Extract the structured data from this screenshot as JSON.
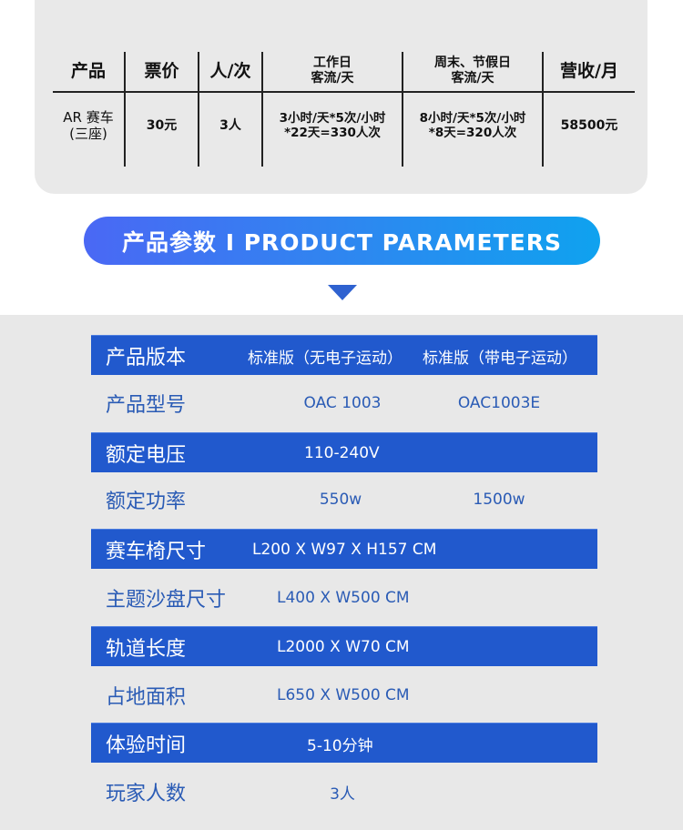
{
  "revenue_table": {
    "headers": [
      "产品",
      "票价",
      "人/次",
      "工作日\n客流/天",
      "周末、节假日\n客流/天",
      "营收/月"
    ],
    "row": [
      "AR 赛车\n(三座)",
      "30元",
      "3人",
      "3小时/天*5次/小时\n*22天=330人次",
      "8小时/天*5次/小时\n*8天=320人次",
      "58500元"
    ]
  },
  "banner": {
    "title": "产品参数 I PRODUCT PARAMETERS"
  },
  "params": [
    {
      "label": "产品版本",
      "values": [
        "标准版（无电子运动）",
        "标准版（带电子运动）"
      ]
    },
    {
      "label": "产品型号",
      "values": [
        "OAC 1003",
        "OAC1003E"
      ]
    },
    {
      "label": "额定电压",
      "values": [
        "110-240V"
      ]
    },
    {
      "label": "额定功率",
      "values": [
        "550w",
        "1500w"
      ]
    },
    {
      "label": "赛车椅尺寸",
      "values": [
        "L200 X W97 X H157 CM"
      ]
    },
    {
      "label": "主题沙盘尺寸",
      "values": [
        "L400 X W500 CM"
      ]
    },
    {
      "label": "轨道长度",
      "values": [
        "L2000 X W70 CM"
      ]
    },
    {
      "label": "占地面积",
      "values": [
        "L650 X W500 CM"
      ]
    },
    {
      "label": "体验时间",
      "values": [
        "5-10分钟"
      ]
    },
    {
      "label": "玩家人数",
      "values": [
        "3人"
      ]
    }
  ],
  "colors": {
    "blue_row": "#2159cd",
    "value_text": "#2a5bb5",
    "panel": "#e8e8e8"
  }
}
